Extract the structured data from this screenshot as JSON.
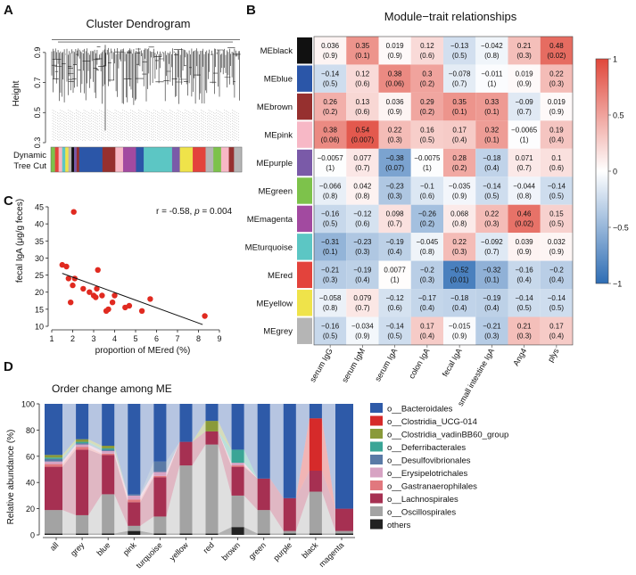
{
  "panel_letters": {
    "a": "A",
    "b": "B",
    "c": "C",
    "d": "D"
  },
  "colors": {
    "heat_low": "#2e6db4",
    "heat_mid": "#ffffff",
    "heat_high": "#e0473a",
    "scatter_point": "#e02a20"
  },
  "chart_data": [
    {
      "id": "A",
      "type": "dendrogram",
      "title": "Cluster Dendrogram",
      "ylabel": "Height",
      "ylim": [
        0.3,
        1.0
      ],
      "yticks": [
        "0.3",
        "0.5",
        "0.7",
        "0.9"
      ],
      "color_row_label_1": "Dynamic",
      "color_row_label_2": "Tree Cut",
      "module_strip": [
        {
          "module": "green",
          "color": "#7dc24b",
          "weight": 0.8
        },
        {
          "module": "red",
          "color": "#e3433c",
          "weight": 0.7
        },
        {
          "module": "pink",
          "color": "#f7b8c6",
          "weight": 0.7
        },
        {
          "module": "turquoise",
          "color": "#5cc6c4",
          "weight": 0.6
        },
        {
          "module": "yellow",
          "color": "#efe34a",
          "weight": 0.6
        },
        {
          "module": "grey",
          "color": "#b5b5b5",
          "weight": 0.6
        },
        {
          "module": "black",
          "color": "#111111",
          "weight": 0.5
        },
        {
          "module": "purple",
          "color": "#7a5aa8",
          "weight": 0.5
        },
        {
          "module": "brown",
          "color": "#96302f",
          "weight": 0.5
        },
        {
          "module": "blue",
          "color": "#2b56a8",
          "weight": 4.5
        },
        {
          "module": "brown",
          "color": "#96302f",
          "weight": 2.5
        },
        {
          "module": "pink",
          "color": "#f7b8c6",
          "weight": 1.5
        },
        {
          "module": "magenta",
          "color": "#a24aa0",
          "weight": 2.5
        },
        {
          "module": "blue",
          "color": "#2b56a8",
          "weight": 1.5
        },
        {
          "module": "turquoise",
          "color": "#5cc6c4",
          "weight": 5.5
        },
        {
          "module": "purple",
          "color": "#7a5aa8",
          "weight": 1.5
        },
        {
          "module": "yellow",
          "color": "#efe34a",
          "weight": 2.5
        },
        {
          "module": "red",
          "color": "#e3433c",
          "weight": 2.5
        },
        {
          "module": "grey",
          "color": "#b5b5b5",
          "weight": 1.5
        },
        {
          "module": "green",
          "color": "#7dc24b",
          "weight": 1.5
        },
        {
          "module": "pink",
          "color": "#f7b8c6",
          "weight": 1.5
        },
        {
          "module": "brown",
          "color": "#96302f",
          "weight": 1.0
        },
        {
          "module": "grey",
          "color": "#b5b5b5",
          "weight": 1.5
        }
      ]
    },
    {
      "id": "B",
      "type": "heatmap",
      "title": "Module−trait relationships",
      "rows": [
        "MEblack",
        "MEblue",
        "MEbrown",
        "MEpink",
        "MEpurple",
        "MEgreen",
        "MEmagenta",
        "MEturquoise",
        "MEred",
        "MEyellow",
        "MEgrey"
      ],
      "row_colors": [
        "#111111",
        "#2b56a8",
        "#96302f",
        "#f7b8c6",
        "#7a5aa8",
        "#7dc24b",
        "#a24aa0",
        "#5cc6c4",
        "#e3433c",
        "#efe34a",
        "#b5b5b5"
      ],
      "columns": [
        "serum IgG",
        "serum IgM",
        "serum IgA",
        "colon IgA",
        "fecal IgA",
        "small intestine IgA",
        "Ang4",
        "plys"
      ],
      "values": [
        [
          0.036,
          0.35,
          0.019,
          0.12,
          -0.13,
          -0.042,
          0.21,
          0.48
        ],
        [
          -0.14,
          0.12,
          0.38,
          0.3,
          -0.078,
          -0.011,
          0.019,
          0.22
        ],
        [
          0.26,
          0.13,
          0.036,
          0.29,
          0.35,
          0.33,
          -0.09,
          0.019
        ],
        [
          0.38,
          0.54,
          0.22,
          0.16,
          0.17,
          0.32,
          -0.0065,
          0.19
        ],
        [
          -0.0057,
          0.077,
          -0.38,
          -0.0075,
          0.28,
          -0.18,
          0.071,
          0.1
        ],
        [
          -0.066,
          0.042,
          -0.23,
          -0.1,
          -0.035,
          -0.14,
          -0.044,
          -0.14
        ],
        [
          -0.16,
          -0.12,
          0.098,
          -0.26,
          0.068,
          0.22,
          0.46,
          0.15
        ],
        [
          -0.31,
          -0.23,
          -0.19,
          -0.045,
          0.22,
          -0.092,
          0.039,
          0.032
        ],
        [
          -0.21,
          -0.19,
          0.0077,
          -0.2,
          -0.52,
          -0.32,
          -0.16,
          -0.2
        ],
        [
          -0.058,
          0.079,
          -0.12,
          -0.17,
          -0.18,
          -0.19,
          -0.14,
          -0.14
        ],
        [
          -0.16,
          -0.034,
          -0.14,
          0.17,
          -0.015,
          -0.21,
          0.21,
          0.17
        ]
      ],
      "value_labels": [
        [
          "0.036",
          "0.35",
          "0.019",
          "0.12",
          "−0.13",
          "−0.042",
          "0.21",
          "0.48"
        ],
        [
          "−0.14",
          "0.12",
          "0.38",
          "0.3",
          "−0.078",
          "−0.011",
          "0.019",
          "0.22"
        ],
        [
          "0.26",
          "0.13",
          "0.036",
          "0.29",
          "0.35",
          "0.33",
          "−0.09",
          "0.019"
        ],
        [
          "0.38",
          "0.54",
          "0.22",
          "0.16",
          "0.17",
          "0.32",
          "−0.0065",
          "0.19"
        ],
        [
          "−0.0057",
          "0.077",
          "−0.38",
          "−0.0075",
          "0.28",
          "−0.18",
          "0.071",
          "0.1"
        ],
        [
          "−0.066",
          "0.042",
          "−0.23",
          "−0.1",
          "−0.035",
          "−0.14",
          "−0.044",
          "−0.14"
        ],
        [
          "−0.16",
          "−0.12",
          "0.098",
          "−0.26",
          "0.068",
          "0.22",
          "0.46",
          "0.15"
        ],
        [
          "−0.31",
          "−0.23",
          "−0.19",
          "−0.045",
          "0.22",
          "−0.092",
          "0.039",
          "0.032"
        ],
        [
          "−0.21",
          "−0.19",
          "0.0077",
          "−0.2",
          "−0.52",
          "−0.32",
          "−0.16",
          "−0.2"
        ],
        [
          "−0.058",
          "0.079",
          "−0.12",
          "−0.17",
          "−0.18",
          "−0.19",
          "−0.14",
          "−0.14"
        ],
        [
          "−0.16",
          "−0.034",
          "−0.14",
          "0.17",
          "−0.015",
          "−0.21",
          "0.21",
          "0.17"
        ]
      ],
      "pvalue_labels": [
        [
          "(0.9)",
          "(0.1)",
          "(0.9)",
          "(0.6)",
          "(0.5)",
          "(0.8)",
          "(0.3)",
          "(0.02)"
        ],
        [
          "(0.5)",
          "(0.6)",
          "(0.06)",
          "(0.2)",
          "(0.7)",
          "(1)",
          "(0.9)",
          "(0.3)"
        ],
        [
          "(0.2)",
          "(0.6)",
          "(0.9)",
          "(0.2)",
          "(0.1)",
          "(0.1)",
          "(0.7)",
          "(0.9)"
        ],
        [
          "(0.06)",
          "(0.007)",
          "(0.3)",
          "(0.5)",
          "(0.4)",
          "(0.1)",
          "(1)",
          "(0.4)"
        ],
        [
          "(1)",
          "(0.7)",
          "(0.07)",
          "(1)",
          "(0.2)",
          "(0.4)",
          "(0.7)",
          "(0.6)"
        ],
        [
          "(0.8)",
          "(0.8)",
          "(0.3)",
          "(0.6)",
          "(0.9)",
          "(0.5)",
          "(0.8)",
          "(0.5)"
        ],
        [
          "(0.5)",
          "(0.6)",
          "(0.7)",
          "(0.2)",
          "(0.8)",
          "(0.3)",
          "(0.02)",
          "(0.5)"
        ],
        [
          "(0.1)",
          "(0.3)",
          "(0.4)",
          "(0.8)",
          "(0.3)",
          "(0.7)",
          "(0.9)",
          "(0.9)"
        ],
        [
          "(0.3)",
          "(0.4)",
          "(1)",
          "(0.3)",
          "(0.01)",
          "(0.1)",
          "(0.4)",
          "(0.4)"
        ],
        [
          "(0.8)",
          "(0.7)",
          "(0.6)",
          "(0.4)",
          "(0.4)",
          "(0.4)",
          "(0.5)",
          "(0.5)"
        ],
        [
          "(0.5)",
          "(0.9)",
          "(0.5)",
          "(0.4)",
          "(0.9)",
          "(0.3)",
          "(0.3)",
          "(0.4)"
        ]
      ],
      "colorbar": {
        "min": -1,
        "max": 1,
        "ticks": [
          "1",
          "0.5",
          "0",
          "−0.5",
          "−1"
        ]
      }
    },
    {
      "id": "C",
      "type": "scatter",
      "xlabel": "proportion of MEred (%)",
      "ylabel": "fecal IgA (μg/g feces)",
      "xlim": [
        1,
        9
      ],
      "ylim": [
        10,
        45
      ],
      "xticks": [
        "1",
        "2",
        "3",
        "4",
        "5",
        "6",
        "7",
        "8",
        "9"
      ],
      "yticks": [
        "10",
        "15",
        "20",
        "25",
        "30",
        "35",
        "40",
        "45"
      ],
      "annotation_prefix": "r  = -0.58, ",
      "annotation_p": "p",
      "annotation_suffix": " = 0.004",
      "points": [
        [
          1.5,
          28
        ],
        [
          1.7,
          27.5
        ],
        [
          1.8,
          24
        ],
        [
          1.9,
          17
        ],
        [
          2.0,
          22
        ],
        [
          2.05,
          43.5
        ],
        [
          2.1,
          24
        ],
        [
          2.5,
          21
        ],
        [
          2.8,
          20
        ],
        [
          3.0,
          19
        ],
        [
          3.1,
          18.5
        ],
        [
          3.15,
          21
        ],
        [
          3.2,
          26.5
        ],
        [
          3.4,
          19
        ],
        [
          3.6,
          14.5
        ],
        [
          3.7,
          15
        ],
        [
          3.9,
          17
        ],
        [
          4.0,
          19
        ],
        [
          4.5,
          15.5
        ],
        [
          4.7,
          16
        ],
        [
          5.3,
          14.5
        ],
        [
          5.7,
          18
        ],
        [
          8.3,
          13
        ]
      ],
      "fit_line": {
        "x": [
          1.5,
          8.2
        ],
        "y": [
          25.5,
          10.5
        ]
      }
    },
    {
      "id": "D",
      "type": "stacked_area",
      "title": "Order change among ME",
      "ylabel": "Relative abundance (%)",
      "ylim": [
        0,
        100
      ],
      "yticks": [
        "0",
        "20",
        "40",
        "60",
        "80",
        "100"
      ],
      "categories": [
        "all",
        "grey",
        "blue",
        "pink",
        "turquoise",
        "yellow",
        "red",
        "brown",
        "green",
        "purple",
        "black",
        "magenta"
      ],
      "series": [
        {
          "name": "others",
          "color": "#222222",
          "values": [
            1,
            1,
            1,
            3,
            1,
            1,
            1,
            6,
            1,
            1,
            1,
            1
          ]
        },
        {
          "name": "o__Oscillospirales",
          "color": "#a3a3a3",
          "values": [
            18,
            14,
            30,
            4,
            13,
            52,
            68,
            24,
            18,
            2,
            32,
            2
          ]
        },
        {
          "name": "o__Lachnospirales",
          "color": "#a63052",
          "values": [
            33,
            50,
            30,
            18,
            30,
            18,
            10,
            22,
            24,
            25,
            16,
            17
          ]
        },
        {
          "name": "o__Gastranaerophilales",
          "color": "#e1787e",
          "values": [
            2,
            2,
            1,
            2,
            1,
            0,
            0,
            1,
            0,
            0,
            0,
            0
          ]
        },
        {
          "name": "o__Erysipelotrichales",
          "color": "#d7a3c3",
          "values": [
            2,
            2,
            2,
            3,
            3,
            0,
            0,
            2,
            0,
            0,
            0,
            0
          ]
        },
        {
          "name": "o__Desulfovibrionales",
          "color": "#5a7aa6",
          "values": [
            2,
            1,
            1,
            1,
            8,
            0,
            0,
            0,
            0,
            0,
            0,
            0
          ]
        },
        {
          "name": "o__Deferribacterales",
          "color": "#3aa596",
          "values": [
            1,
            1,
            1,
            0,
            0,
            0,
            0,
            10,
            0,
            0,
            0,
            0
          ]
        },
        {
          "name": "o__Clostridia_vadinBB60_group",
          "color": "#8a9a3a",
          "values": [
            2,
            2,
            2,
            0,
            0,
            0,
            8,
            0,
            0,
            0,
            0,
            0
          ]
        },
        {
          "name": "o__Clostridia_UCG-014",
          "color": "#d62a2a",
          "values": [
            0,
            0,
            0,
            0,
            0,
            0,
            0,
            0,
            0,
            0,
            40,
            0
          ]
        },
        {
          "name": "o__Bacteroidales",
          "color": "#2e5aa8",
          "values": [
            39,
            27,
            32,
            69,
            44,
            29,
            13,
            35,
            57,
            72,
            11,
            80
          ]
        }
      ],
      "legend_order": [
        "o__Bacteroidales",
        "o__Clostridia_UCG-014",
        "o__Clostridia_vadinBB60_group",
        "o__Deferribacterales",
        "o__Desulfovibrionales",
        "o__Erysipelotrichales",
        "o__Gastranaerophilales",
        "o__Lachnospirales",
        "o__Oscillospirales",
        "others"
      ]
    }
  ]
}
